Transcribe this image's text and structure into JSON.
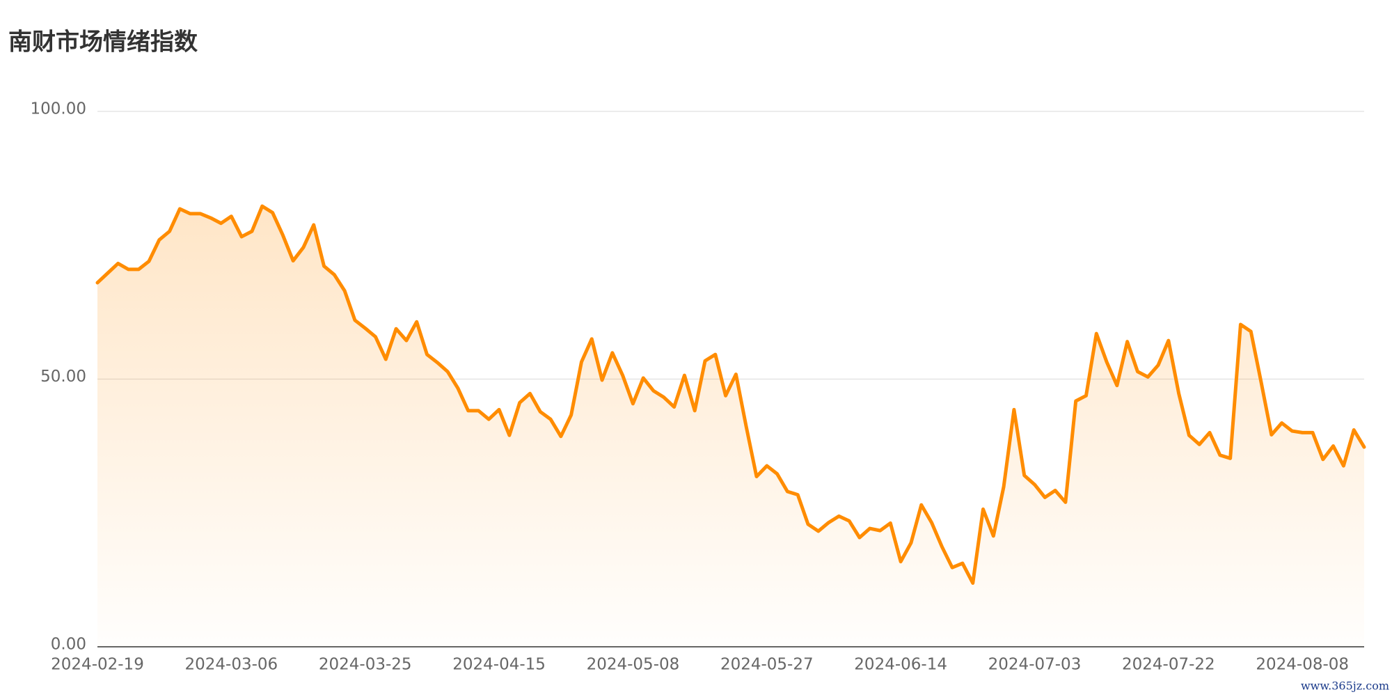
{
  "chart_data": {
    "type": "line",
    "title": "南财市场情绪指数",
    "watermark": "www.365jz.com",
    "categories": [
      "2024-02-19",
      null,
      null,
      null,
      null,
      null,
      null,
      null,
      null,
      null,
      null,
      null,
      null,
      "2024-03-06",
      null,
      null,
      null,
      null,
      null,
      null,
      null,
      null,
      null,
      null,
      null,
      null,
      "2024-03-25",
      null,
      null,
      null,
      null,
      null,
      null,
      null,
      null,
      null,
      null,
      null,
      null,
      "2024-04-15",
      null,
      null,
      null,
      null,
      null,
      null,
      null,
      null,
      null,
      null,
      null,
      null,
      "2024-05-08",
      null,
      null,
      null,
      null,
      null,
      null,
      null,
      null,
      null,
      null,
      null,
      null,
      "2024-05-27",
      null,
      null,
      null,
      null,
      null,
      null,
      null,
      null,
      null,
      null,
      null,
      null,
      "2024-06-14",
      null,
      null,
      null,
      null,
      null,
      null,
      null,
      null,
      null,
      null,
      null,
      null,
      "2024-07-03",
      null,
      null,
      null,
      null,
      null,
      null,
      null,
      null,
      null,
      null,
      null,
      null,
      "2024-07-22",
      null,
      null,
      null,
      null,
      null,
      null,
      null,
      null,
      null,
      null,
      null,
      null,
      "2024-08-08",
      null,
      null,
      null,
      null,
      null,
      null
    ],
    "values": [
      68.0,
      69.8,
      71.6,
      70.5,
      70.5,
      72.0,
      76.0,
      77.6,
      81.8,
      80.9,
      80.9,
      80.1,
      79.1,
      80.4,
      76.6,
      77.6,
      82.3,
      81.1,
      76.9,
      72.1,
      74.6,
      78.8,
      71.1,
      69.5,
      66.5,
      61.0,
      59.5,
      57.9,
      53.7,
      59.4,
      57.2,
      60.7,
      54.6,
      53.1,
      51.4,
      48.3,
      44.1,
      44.1,
      42.5,
      44.3,
      39.5,
      45.6,
      47.3,
      43.9,
      42.5,
      39.3,
      43.3,
      53.2,
      57.5,
      49.8,
      54.9,
      50.7,
      45.4,
      50.2,
      47.8,
      46.6,
      44.8,
      50.7,
      44.1,
      53.4,
      54.6,
      46.9,
      50.9,
      41.1,
      31.8,
      33.8,
      32.3,
      29.0,
      28.4,
      22.9,
      21.6,
      23.2,
      24.4,
      23.5,
      20.4,
      22.1,
      21.7,
      23.1,
      15.9,
      19.4,
      26.5,
      23.2,
      18.7,
      14.8,
      15.6,
      11.9,
      25.7,
      20.7,
      29.9,
      44.3,
      32.0,
      30.3,
      27.9,
      29.2,
      27.0,
      45.9,
      46.9,
      58.5,
      53.2,
      48.8,
      57.0,
      51.4,
      50.4,
      52.6,
      57.2,
      47.3,
      39.5,
      37.8,
      40.0,
      35.8,
      35.2,
      60.2,
      58.9,
      49.4,
      39.6,
      41.8,
      40.3,
      40.0,
      40.0,
      35.0,
      37.5,
      33.8,
      40.5,
      37.3
    ],
    "color": "#ff8c00",
    "ylim": [
      0,
      100
    ],
    "yticks": [
      {
        "value": 0,
        "label": "0.00"
      },
      {
        "value": 50,
        "label": "50.00"
      },
      {
        "value": 100,
        "label": "100.00"
      }
    ],
    "grid": true
  }
}
